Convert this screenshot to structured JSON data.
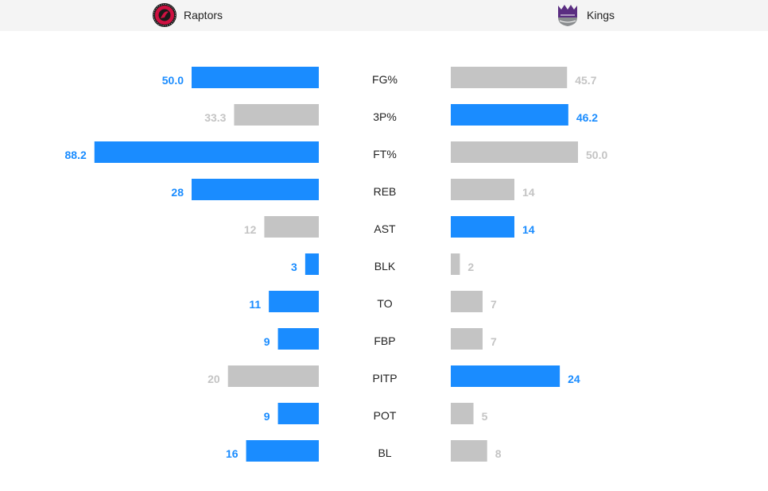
{
  "teams": {
    "home": {
      "name": "Raptors",
      "logo_icon": "raptors-logo-icon"
    },
    "away": {
      "name": "Kings",
      "logo_icon": "kings-logo-icon"
    }
  },
  "colors": {
    "leader": "#1a8cff",
    "other": "#c4c4c4",
    "other_text": "#c4c4c4"
  },
  "chart_data": {
    "type": "bar",
    "categories": [
      "FG%",
      "3P%",
      "FT%",
      "REB",
      "AST",
      "BLK",
      "TO",
      "FBP",
      "PITP",
      "POT",
      "BL"
    ],
    "series": [
      {
        "name": "Raptors",
        "values": [
          50.0,
          33.3,
          88.2,
          28,
          12,
          3,
          11,
          9,
          20,
          9,
          16
        ],
        "labels": [
          "50.0",
          "33.3",
          "88.2",
          "28",
          "12",
          "3",
          "11",
          "9",
          "20",
          "9",
          "16"
        ],
        "highlight": [
          true,
          false,
          true,
          true,
          false,
          true,
          true,
          true,
          false,
          true,
          true
        ]
      },
      {
        "name": "Kings",
        "values": [
          45.7,
          46.2,
          50.0,
          14,
          14,
          2,
          7,
          7,
          24,
          5,
          8
        ],
        "labels": [
          "45.7",
          "46.2",
          "50.0",
          "14",
          "14",
          "2",
          "7",
          "7",
          "24",
          "5",
          "8"
        ],
        "highlight": [
          false,
          true,
          false,
          false,
          true,
          false,
          false,
          false,
          true,
          false,
          false
        ]
      }
    ],
    "orientation": "horizontal-mirrored",
    "grid": false
  }
}
